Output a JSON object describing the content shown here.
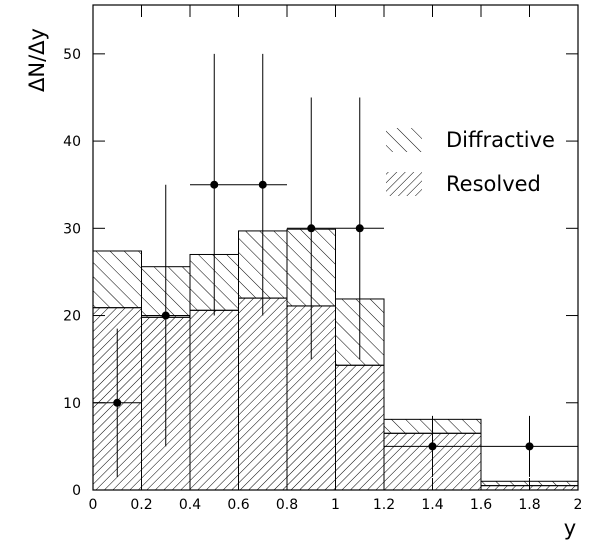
{
  "chart_data": {
    "type": "histogram",
    "y_label": "ΔN/Δy",
    "x_label": "y",
    "bins": [
      0,
      0.2,
      0.4,
      0.6,
      0.8,
      1.0,
      1.2,
      1.6,
      2.0
    ],
    "series": [
      {
        "name": "Resolved",
        "color": "#000000",
        "values": [
          20.9,
          19.8,
          20.6,
          22,
          21.1,
          14.3,
          6.5,
          0.5
        ]
      },
      {
        "name": "Diffractive",
        "color": "#000000",
        "values": [
          6.5,
          5.8,
          6.4,
          7.7,
          8.8,
          7.6,
          1.6,
          0.5
        ]
      }
    ],
    "points": {
      "x": [
        0.1,
        0.3,
        0.5,
        0.7,
        0.9,
        1.1,
        1.4,
        1.8
      ],
      "y": [
        10,
        20,
        35,
        35,
        30,
        30,
        5,
        5
      ],
      "xerr": [
        0.1,
        0.1,
        0.1,
        0.1,
        0.1,
        0.1,
        0.2,
        0.2
      ],
      "yerr": [
        8.5,
        15,
        15,
        15,
        15,
        15,
        3.5,
        3.5
      ]
    },
    "xlim": [
      0,
      2
    ],
    "ylim": [
      0,
      55.6
    ],
    "xticks": [
      0,
      0.2,
      0.4,
      0.6,
      0.8,
      1,
      1.2,
      1.4,
      1.6,
      1.8,
      2
    ],
    "yticks": [
      0,
      10,
      20,
      30,
      40,
      50
    ]
  }
}
